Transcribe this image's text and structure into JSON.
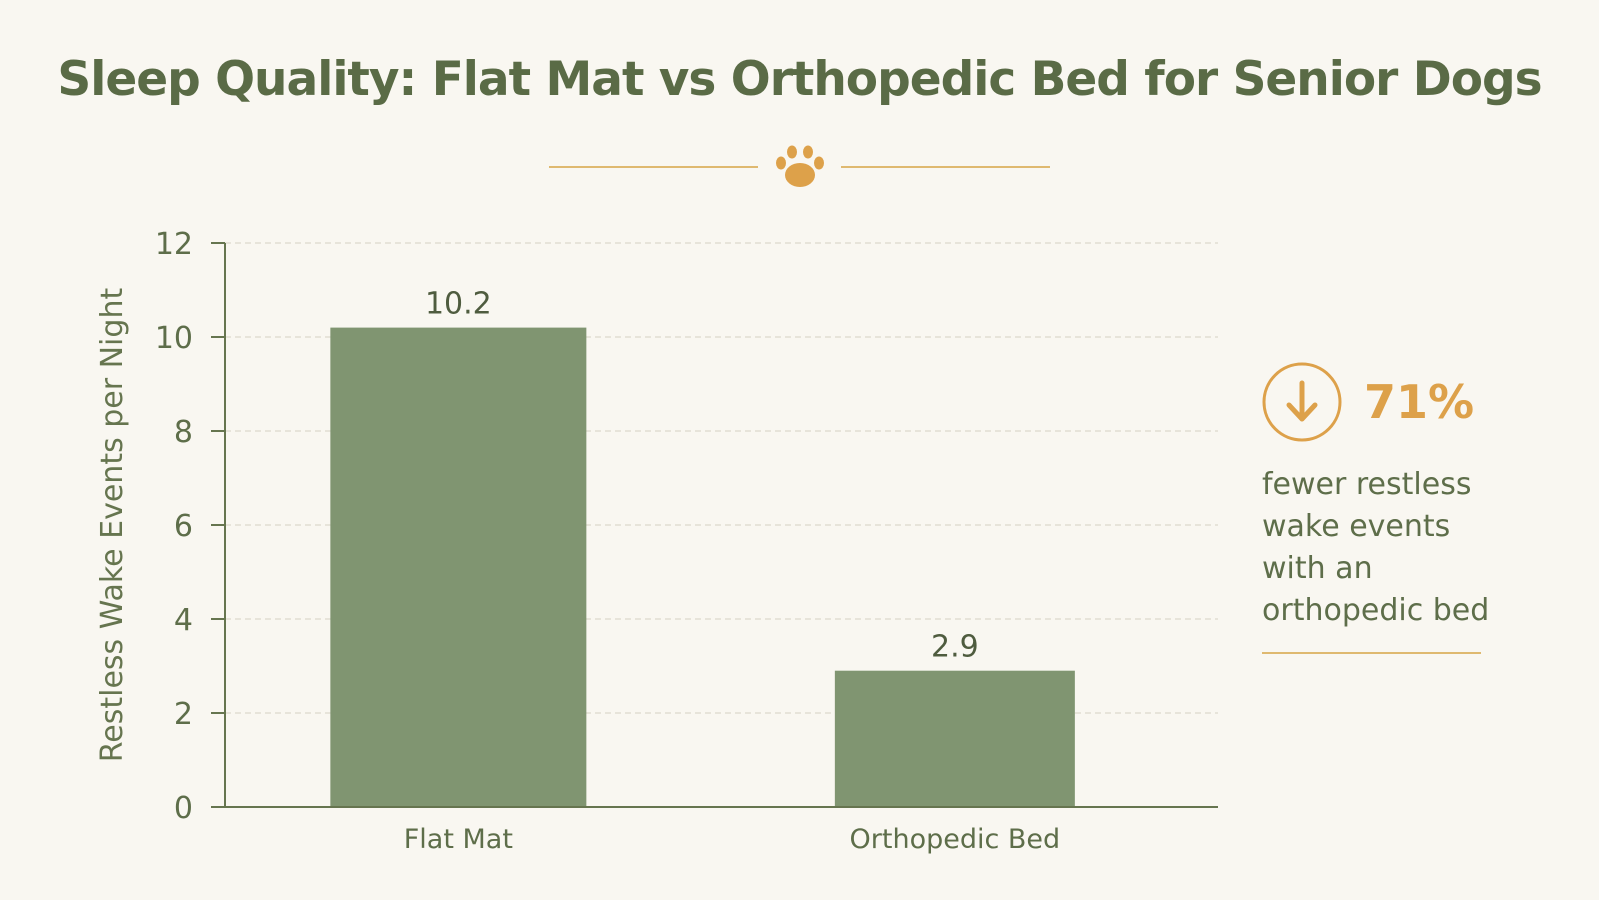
{
  "chart_data": {
    "type": "bar",
    "title": "Sleep Quality: Flat Mat vs Orthopedic Bed for Senior Dogs",
    "categories": [
      "Flat Mat",
      "Orthopedic Bed"
    ],
    "values": [
      10.2,
      2.9
    ],
    "data_labels": [
      "10.2",
      "2.9"
    ],
    "xlabel": "",
    "ylabel": "Restless Wake Events per Night",
    "ylim": [
      0,
      12
    ],
    "yticks": [
      0,
      2,
      4,
      6,
      8,
      10,
      12
    ],
    "grid": true,
    "legend": "none"
  },
  "callout": {
    "icon": "down-arrow-circle-icon",
    "percent": "71%",
    "text": "fewer restless wake events with an orthopedic bed"
  },
  "decoration": {
    "icon": "paw-print-icon"
  },
  "colors": {
    "background": "#f9f7f1",
    "bar": "#809571",
    "title": "#5a6b46",
    "accent": "#dda14a",
    "axis": "#66754f",
    "grid": "#e1ddd3"
  }
}
